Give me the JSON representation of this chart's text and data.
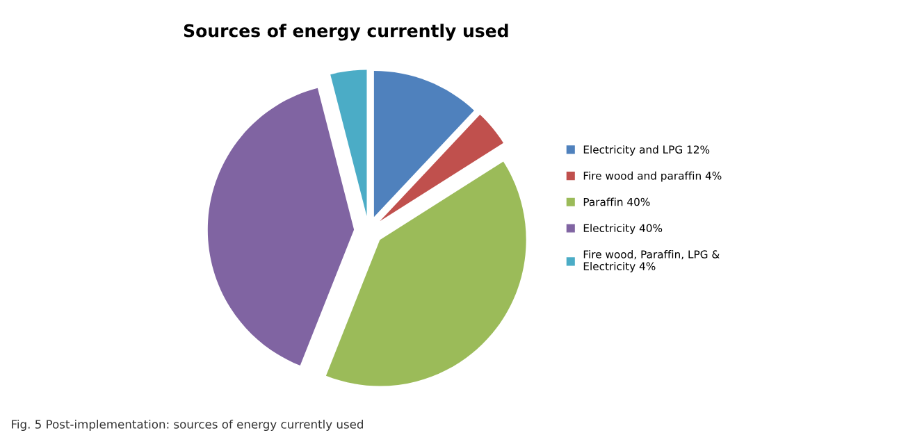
{
  "chart_data": {
    "type": "pie",
    "title": "Sources of energy currently used",
    "categories": [
      "Electricity and LPG 12%",
      "Fire wood and paraffin 4%",
      "Paraffin 40%",
      "Electricity 40%",
      "Fire wood, Paraffin, LPG & Electricity 4%"
    ],
    "values": [
      12,
      4,
      40,
      40,
      4
    ],
    "colors": [
      "#4f81bd",
      "#c0504d",
      "#9bbb59",
      "#8064a2",
      "#4bacc6"
    ],
    "legend": "right",
    "annotations": [
      "Fig. 5 Post-implementation: sources of energy currently used"
    ]
  }
}
